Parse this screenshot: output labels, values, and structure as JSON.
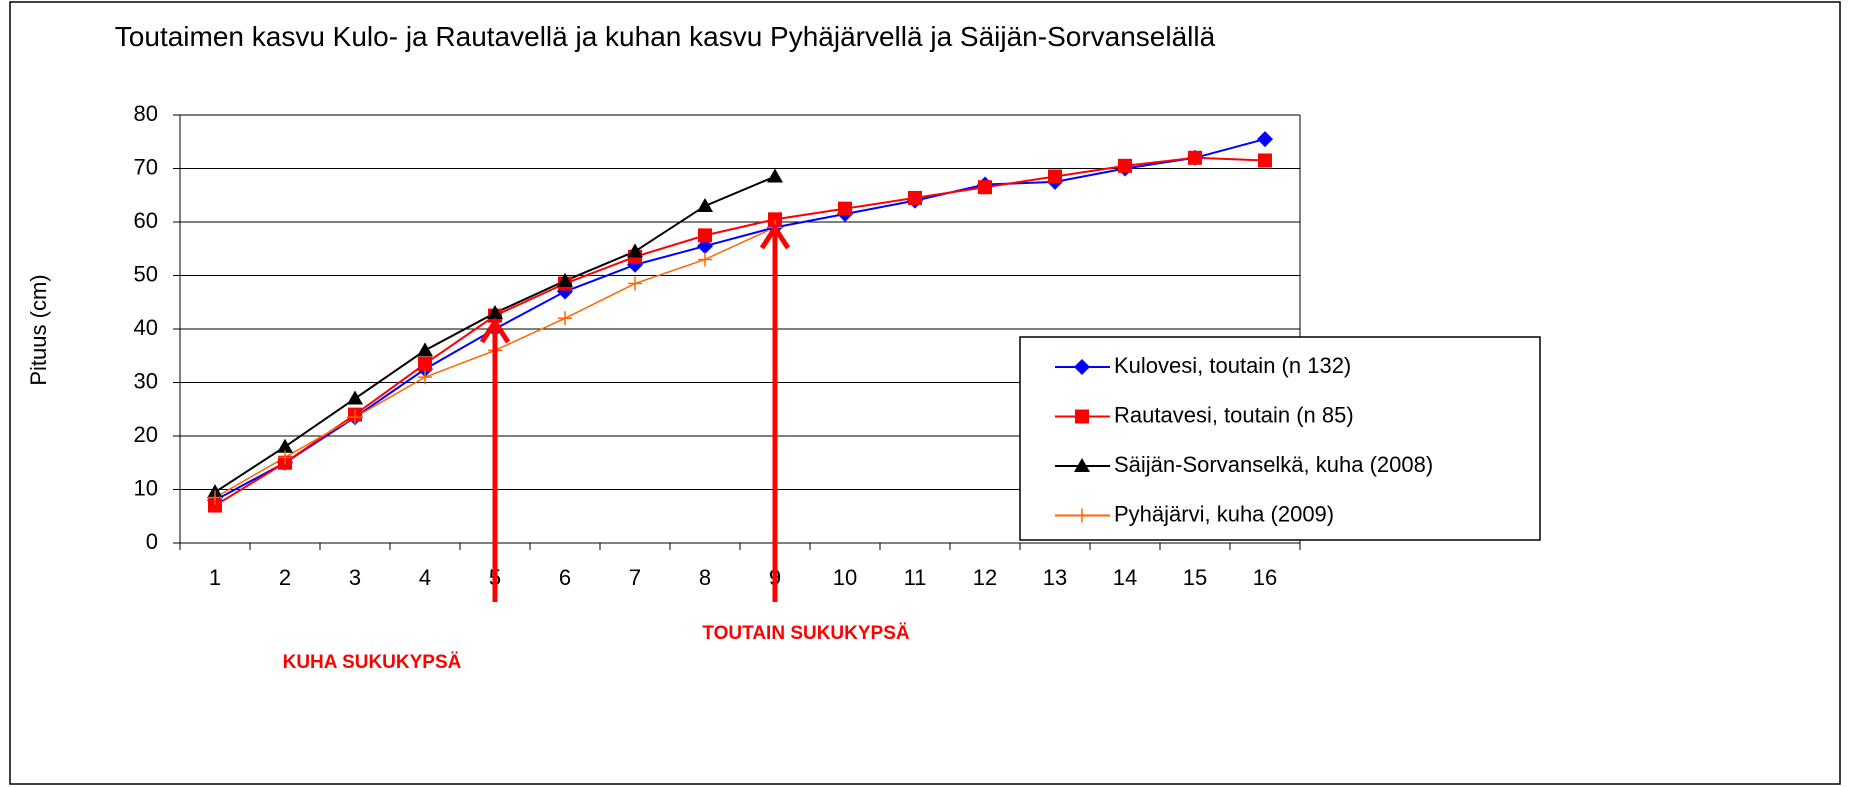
{
  "chart_data": {
    "type": "line",
    "title": "Toutaimen kasvu Kulo- ja Rautavellä ja kuhan kasvu Pyhäjärvellä ja Säijän-Sorvanselällä",
    "ylabel": "Pituus (cm)",
    "categories": [
      1,
      2,
      3,
      4,
      5,
      6,
      7,
      8,
      9,
      10,
      11,
      12,
      13,
      14,
      15,
      16
    ],
    "series": [
      {
        "name": "Kulovesi, toutain (n 132)",
        "color": "#0000ff",
        "marker": "diamond",
        "values": [
          8,
          15,
          23.5,
          32.5,
          40,
          47,
          52,
          55.5,
          59,
          61.5,
          64,
          67,
          67.5,
          70,
          72,
          75.5
        ]
      },
      {
        "name": "Rautavesi, toutain (n 85)",
        "color": "#ff0000",
        "marker": "square",
        "values": [
          7,
          15,
          24,
          33.5,
          42.5,
          48.5,
          53.5,
          57.5,
          60.5,
          62.5,
          64.5,
          66.5,
          68.5,
          70.5,
          72,
          71.5
        ]
      },
      {
        "name": "Säijän-Sorvanselkä, kuha (2008)",
        "color": "#000000",
        "marker": "triangle",
        "values": [
          9.5,
          18,
          27,
          36,
          43,
          49,
          54.5,
          63,
          68.5,
          null,
          null,
          null,
          null,
          null,
          null,
          null
        ]
      },
      {
        "name": "Pyhäjärvi, kuha (2009)",
        "color": "#ff6600",
        "marker": "plus",
        "values": [
          8.5,
          16,
          23.5,
          31,
          36,
          42,
          48.5,
          53,
          59,
          null,
          null,
          null,
          null,
          null,
          null,
          null
        ]
      }
    ],
    "ylim": [
      0,
      80
    ],
    "yticks": [
      0,
      10,
      20,
      30,
      40,
      50,
      60,
      70,
      80
    ],
    "grid": true,
    "legend": "right",
    "annotations": [
      "KUHA SUKUKYPSÄ",
      "TOUTAIN SUKUKYPSÄ"
    ]
  }
}
